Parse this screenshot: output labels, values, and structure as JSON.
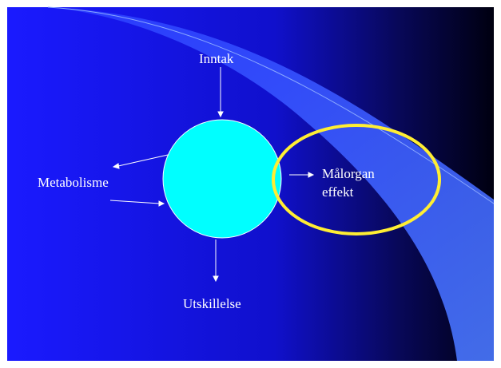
{
  "nodes": [
    {
      "label": "Inntak"
    },
    {
      "label": "Metabolisme"
    },
    {
      "label": "Målorgan"
    },
    {
      "label": "effekt"
    },
    {
      "label": "Utskillelse"
    }
  ]
}
